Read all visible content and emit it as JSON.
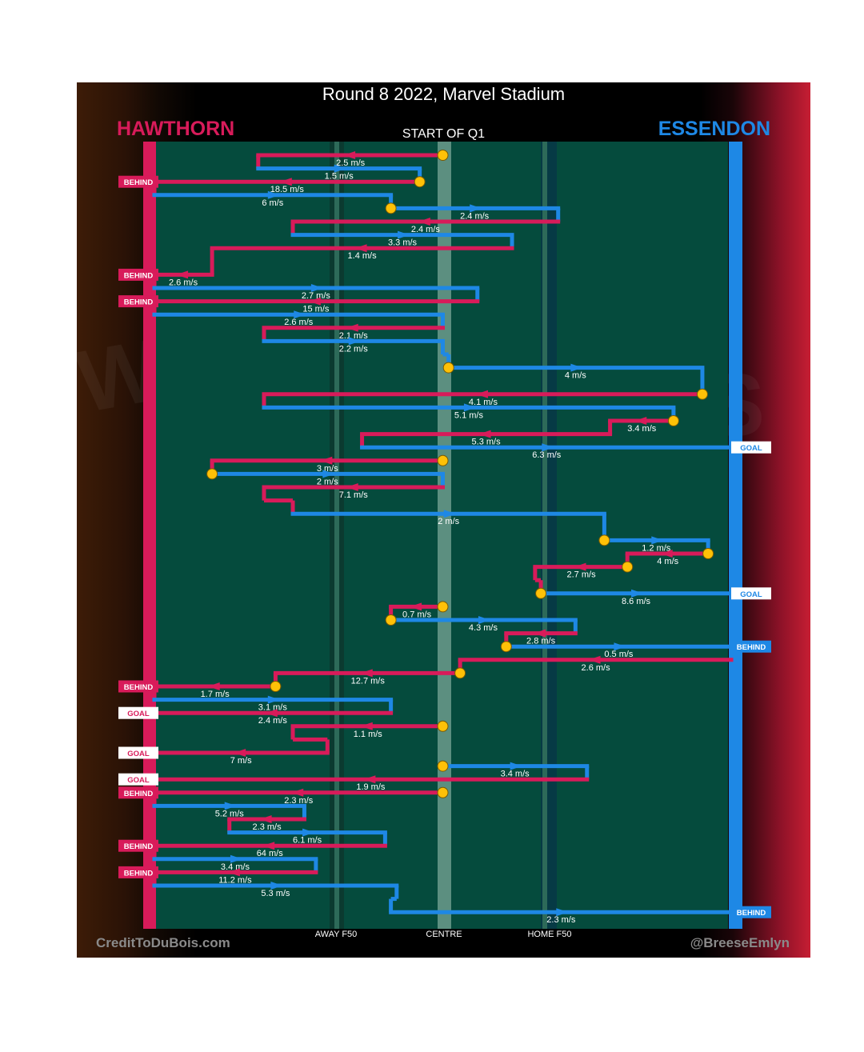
{
  "title": "Round 8 2022, Marvel Stadium",
  "subtitle": "START OF Q1",
  "teams": {
    "left": "HAWTHORN",
    "right": "ESSENDON"
  },
  "footer": {
    "left_credit": "CreditToDuBois.com",
    "right_credit": "@BreeseEmlyn"
  },
  "zones": {
    "away": "AWAY F50",
    "centre": "CENTRE",
    "home": "HOME F50"
  },
  "colors": {
    "hawthorn": "#d81b5a",
    "essendon": "#1e88e5",
    "field": "#054b3d",
    "ball_marker": "#ffc107"
  },
  "chart_data": {
    "type": "line",
    "description_axis": "x = field position from Hawthorn goal line (0) to Essendon goal line (100), centre = 50; rows = chains in time order",
    "xlim": [
      0,
      100
    ],
    "chains": [
      {
        "team": "hawthorn",
        "y": 1,
        "x0": 50,
        "x1": 18,
        "speed": "2.5 m/s",
        "marker": true
      },
      {
        "team": "essendon",
        "y": 2,
        "x0": 18,
        "x1": 46,
        "speed": "1.5 m/s"
      },
      {
        "team": "hawthorn",
        "y": 3,
        "x0": 46,
        "x1": 0,
        "speed": "18.5 m/s",
        "marker": true,
        "end": "BEHIND"
      },
      {
        "team": "essendon",
        "y": 4,
        "x0": 0,
        "x1": 41,
        "speed": "6 m/s"
      },
      {
        "team": "essendon",
        "y": 5,
        "x0": 41,
        "x1": 70,
        "speed": "2.4 m/s",
        "marker": true
      },
      {
        "team": "hawthorn",
        "y": 6,
        "x0": 70,
        "x1": 24,
        "speed": "2.4 m/s"
      },
      {
        "team": "essendon",
        "y": 7,
        "x0": 24,
        "x1": 62,
        "speed": "3.3 m/s"
      },
      {
        "team": "hawthorn",
        "y": 8,
        "x0": 62,
        "x1": 10,
        "speed": "1.4 m/s"
      },
      {
        "team": "hawthorn",
        "y": 10,
        "x0": 10,
        "x1": 0,
        "speed": "2.6 m/s",
        "end": "BEHIND"
      },
      {
        "team": "essendon",
        "y": 11,
        "x0": 0,
        "x1": 56,
        "speed": "2.7 m/s"
      },
      {
        "team": "hawthorn",
        "y": 12,
        "x0": 56,
        "x1": 0,
        "speed": "15 m/s",
        "end": "BEHIND"
      },
      {
        "team": "essendon",
        "y": 13,
        "x0": 0,
        "x1": 50,
        "speed": "2.6 m/s"
      },
      {
        "team": "hawthorn",
        "y": 14,
        "x0": 50,
        "x1": 19,
        "speed": "2.1 m/s"
      },
      {
        "team": "essendon",
        "y": 15,
        "x0": 19,
        "x1": 50,
        "speed": "2.2 m/s"
      },
      {
        "team": "essendon",
        "y": 17,
        "x0": 51,
        "x1": 95,
        "speed": "4 m/s",
        "marker": true
      },
      {
        "team": "hawthorn",
        "y": 19,
        "x0": 95,
        "x1": 19,
        "speed": "4.1 m/s",
        "marker": true
      },
      {
        "team": "essendon",
        "y": 20,
        "x0": 19,
        "x1": 90,
        "speed": "5.1 m/s"
      },
      {
        "team": "hawthorn",
        "y": 21,
        "x0": 90,
        "x1": 79,
        "speed": "3.4 m/s",
        "marker": true
      },
      {
        "team": "hawthorn",
        "y": 22,
        "x0": 79,
        "x1": 36,
        "speed": "5.3 m/s"
      },
      {
        "team": "essendon",
        "y": 23,
        "x0": 36,
        "x1": 100,
        "speed": "6.3 m/s",
        "end": "GOAL"
      },
      {
        "team": "hawthorn",
        "y": 24,
        "x0": 50,
        "x1": 10,
        "speed": "3 m/s",
        "marker": true
      },
      {
        "team": "essendon",
        "y": 25,
        "x0": 10,
        "x1": 50,
        "speed": "2 m/s",
        "marker": true
      },
      {
        "team": "hawthorn",
        "y": 26,
        "x0": 50,
        "x1": 19,
        "speed": "7.1 m/s"
      },
      {
        "team": "essendon",
        "y": 28,
        "x0": 24,
        "x1": 78,
        "speed": "2 m/s"
      },
      {
        "team": "essendon",
        "y": 30,
        "x0": 78,
        "x1": 96,
        "speed": "1.2 m/s",
        "marker": true
      },
      {
        "team": "hawthorn",
        "y": 31,
        "x0": 96,
        "x1": 82,
        "speed": "4 m/s",
        "marker": true
      },
      {
        "team": "hawthorn",
        "y": 32,
        "x0": 82,
        "x1": 66,
        "speed": "2.7 m/s",
        "marker": true
      },
      {
        "team": "essendon",
        "y": 34,
        "x0": 67,
        "x1": 100,
        "speed": "8.6 m/s",
        "marker": true,
        "end": "GOAL"
      },
      {
        "team": "hawthorn",
        "y": 35,
        "x0": 50,
        "x1": 41,
        "speed": "0.7 m/s",
        "marker": true
      },
      {
        "team": "essendon",
        "y": 36,
        "x0": 41,
        "x1": 73,
        "speed": "4.3 m/s",
        "marker": true
      },
      {
        "team": "hawthorn",
        "y": 37,
        "x0": 73,
        "x1": 61,
        "speed": "2.8 m/s"
      },
      {
        "team": "essendon",
        "y": 38,
        "x0": 61,
        "x1": 100,
        "speed": "0.5 m/s",
        "marker": true,
        "end": "BEHIND"
      },
      {
        "team": "hawthorn",
        "y": 39,
        "x0": 100,
        "x1": 53,
        "speed": "2.6 m/s"
      },
      {
        "team": "hawthorn",
        "y": 40,
        "x0": 53,
        "x1": 21,
        "speed": "12.7 m/s",
        "marker": true
      },
      {
        "team": "hawthorn",
        "y": 41,
        "x0": 21,
        "x1": 0,
        "speed": "1.7 m/s",
        "marker": true,
        "end": "BEHIND"
      },
      {
        "team": "essendon",
        "y": 42,
        "x0": 0,
        "x1": 41,
        "speed": "3.1 m/s"
      },
      {
        "team": "hawthorn",
        "y": 43,
        "x0": 41,
        "x1": 0,
        "speed": "2.4 m/s",
        "end": "GOAL"
      },
      {
        "team": "hawthorn",
        "y": 44,
        "x0": 50,
        "x1": 24,
        "speed": "1.1 m/s",
        "marker": true
      },
      {
        "team": "hawthorn",
        "y": 46,
        "x0": 30,
        "x1": 0,
        "speed": "7 m/s",
        "end": "GOAL"
      },
      {
        "team": "essendon",
        "y": 47,
        "x0": 50,
        "x1": 75,
        "speed": "3.4 m/s",
        "marker": true
      },
      {
        "team": "hawthorn",
        "y": 48,
        "x0": 75,
        "x1": 0,
        "speed": "1.9 m/s",
        "end": "GOAL"
      },
      {
        "team": "hawthorn",
        "y": 49,
        "x0": 50,
        "x1": 0,
        "speed": "2.3 m/s",
        "marker": true,
        "end": "BEHIND"
      },
      {
        "team": "essendon",
        "y": 50,
        "x0": 0,
        "x1": 26,
        "speed": "5.2 m/s"
      },
      {
        "team": "hawthorn",
        "y": 51,
        "x0": 26,
        "x1": 13,
        "speed": "2.3 m/s"
      },
      {
        "team": "essendon",
        "y": 52,
        "x0": 13,
        "x1": 40,
        "speed": "6.1 m/s"
      },
      {
        "team": "hawthorn",
        "y": 53,
        "x0": 40,
        "x1": 0,
        "speed": "64 m/s",
        "end": "BEHIND"
      },
      {
        "team": "essendon",
        "y": 54,
        "x0": 0,
        "x1": 28,
        "speed": "3.4 m/s"
      },
      {
        "team": "hawthorn",
        "y": 55,
        "x0": 28,
        "x1": 0,
        "speed": "11.2 m/s",
        "end": "BEHIND"
      },
      {
        "team": "essendon",
        "y": 56,
        "x0": 0,
        "x1": 42,
        "speed": "5.3 m/s"
      },
      {
        "team": "essendon",
        "y": 58,
        "x0": 41,
        "x1": 100,
        "speed": "2.3 m/s",
        "end": "BEHIND"
      }
    ]
  }
}
